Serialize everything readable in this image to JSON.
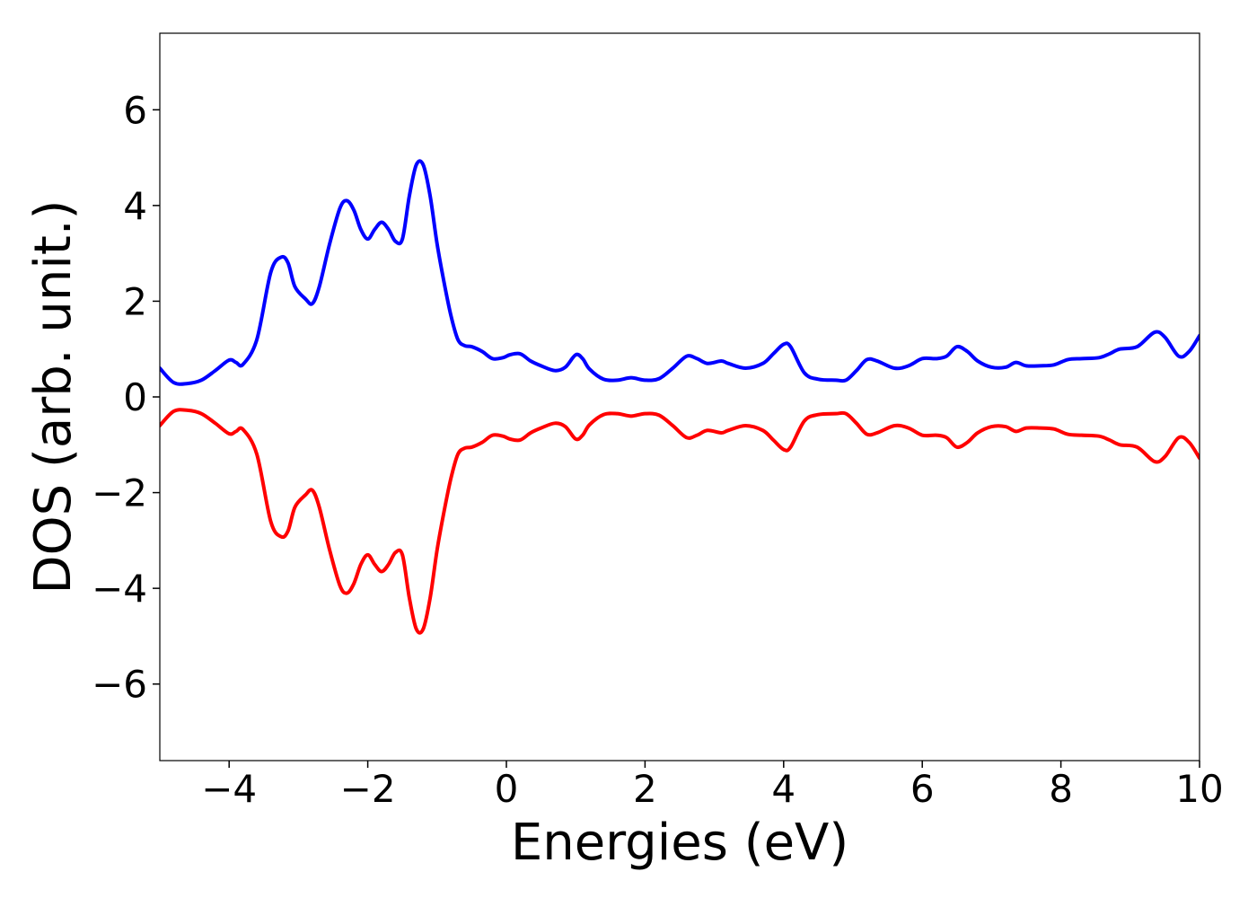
{
  "chart_data": {
    "type": "line",
    "title": "",
    "xlabel": "Energies (eV)",
    "ylabel": "DOS (arb. unit.)",
    "xlim": [
      -5,
      10
    ],
    "ylim": [
      -7.6,
      7.6
    ],
    "xticks": [
      -4,
      -2,
      0,
      2,
      4,
      6,
      8,
      10
    ],
    "xtick_labels": [
      "−4",
      "−2",
      "0",
      "2",
      "4",
      "6",
      "8",
      "10"
    ],
    "yticks": [
      -6,
      -4,
      -2,
      0,
      2,
      4,
      6
    ],
    "ytick_labels": [
      "−6",
      "−4",
      "−2",
      "0",
      "2",
      "4",
      "6"
    ],
    "grid": false,
    "legend": "none",
    "series": [
      {
        "color": "#0000ff",
        "x": [
          -5.0,
          -4.8,
          -4.6,
          -4.4,
          -4.2,
          -4.0,
          -3.9,
          -3.8,
          -3.6,
          -3.4,
          -3.25,
          -3.15,
          -3.05,
          -2.9,
          -2.8,
          -2.7,
          -2.55,
          -2.4,
          -2.3,
          -2.2,
          -2.1,
          -2.0,
          -1.9,
          -1.8,
          -1.7,
          -1.6,
          -1.5,
          -1.4,
          -1.3,
          -1.2,
          -1.1,
          -1.0,
          -0.9,
          -0.8,
          -0.7,
          -0.6,
          -0.5,
          -0.35,
          -0.2,
          -0.05,
          0.05,
          0.2,
          0.35,
          0.5,
          0.7,
          0.85,
          1.0,
          1.1,
          1.2,
          1.4,
          1.6,
          1.8,
          2.0,
          2.2,
          2.4,
          2.6,
          2.75,
          2.9,
          3.1,
          3.2,
          3.45,
          3.7,
          3.85,
          4.0,
          4.1,
          4.3,
          4.5,
          4.75,
          4.9,
          5.05,
          5.2,
          5.35,
          5.6,
          5.8,
          6.0,
          6.2,
          6.35,
          6.5,
          6.65,
          6.8,
          7.0,
          7.2,
          7.35,
          7.5,
          7.7,
          7.9,
          8.1,
          8.3,
          8.55,
          8.7,
          8.85,
          9.1,
          9.35,
          9.5,
          9.7,
          9.85,
          10.0
        ],
        "y": [
          0.6,
          0.3,
          0.28,
          0.35,
          0.55,
          0.77,
          0.72,
          0.68,
          1.2,
          2.6,
          2.92,
          2.8,
          2.3,
          2.05,
          1.95,
          2.3,
          3.2,
          3.95,
          4.1,
          3.9,
          3.5,
          3.3,
          3.5,
          3.65,
          3.5,
          3.25,
          3.3,
          4.2,
          4.85,
          4.85,
          4.2,
          3.2,
          2.4,
          1.7,
          1.2,
          1.07,
          1.05,
          0.95,
          0.8,
          0.82,
          0.88,
          0.9,
          0.75,
          0.65,
          0.55,
          0.62,
          0.88,
          0.8,
          0.58,
          0.37,
          0.35,
          0.4,
          0.35,
          0.38,
          0.6,
          0.85,
          0.8,
          0.7,
          0.75,
          0.7,
          0.6,
          0.7,
          0.9,
          1.1,
          1.05,
          0.5,
          0.37,
          0.35,
          0.35,
          0.55,
          0.78,
          0.75,
          0.6,
          0.65,
          0.8,
          0.8,
          0.85,
          1.05,
          0.95,
          0.75,
          0.62,
          0.62,
          0.72,
          0.65,
          0.65,
          0.67,
          0.78,
          0.8,
          0.82,
          0.9,
          1.0,
          1.05,
          1.35,
          1.25,
          0.85,
          0.95,
          1.28
        ]
      },
      {
        "color": "#ff0000",
        "x": [
          -5.0,
          -4.8,
          -4.6,
          -4.4,
          -4.2,
          -4.0,
          -3.9,
          -3.8,
          -3.6,
          -3.4,
          -3.25,
          -3.15,
          -3.05,
          -2.9,
          -2.8,
          -2.7,
          -2.55,
          -2.4,
          -2.3,
          -2.2,
          -2.1,
          -2.0,
          -1.9,
          -1.8,
          -1.7,
          -1.6,
          -1.5,
          -1.4,
          -1.3,
          -1.2,
          -1.1,
          -1.0,
          -0.9,
          -0.8,
          -0.7,
          -0.6,
          -0.5,
          -0.35,
          -0.2,
          -0.05,
          0.05,
          0.2,
          0.35,
          0.5,
          0.7,
          0.85,
          1.0,
          1.1,
          1.2,
          1.4,
          1.6,
          1.8,
          2.0,
          2.2,
          2.4,
          2.6,
          2.75,
          2.9,
          3.1,
          3.2,
          3.45,
          3.7,
          3.85,
          4.0,
          4.1,
          4.3,
          4.5,
          4.75,
          4.9,
          5.05,
          5.2,
          5.35,
          5.6,
          5.8,
          6.0,
          6.2,
          6.35,
          6.5,
          6.65,
          6.8,
          7.0,
          7.2,
          7.35,
          7.5,
          7.7,
          7.9,
          8.1,
          8.3,
          8.55,
          8.7,
          8.85,
          9.1,
          9.35,
          9.5,
          9.7,
          9.85,
          10.0
        ],
        "y": [
          -0.6,
          -0.3,
          -0.28,
          -0.35,
          -0.55,
          -0.77,
          -0.72,
          -0.68,
          -1.2,
          -2.6,
          -2.92,
          -2.8,
          -2.3,
          -2.05,
          -1.95,
          -2.3,
          -3.2,
          -3.95,
          -4.1,
          -3.9,
          -3.5,
          -3.3,
          -3.5,
          -3.65,
          -3.5,
          -3.25,
          -3.3,
          -4.2,
          -4.85,
          -4.85,
          -4.2,
          -3.2,
          -2.4,
          -1.7,
          -1.2,
          -1.07,
          -1.05,
          -0.95,
          -0.8,
          -0.82,
          -0.88,
          -0.9,
          -0.75,
          -0.65,
          -0.55,
          -0.62,
          -0.88,
          -0.8,
          -0.58,
          -0.37,
          -0.35,
          -0.4,
          -0.35,
          -0.38,
          -0.6,
          -0.85,
          -0.8,
          -0.7,
          -0.75,
          -0.7,
          -0.6,
          -0.7,
          -0.9,
          -1.1,
          -1.05,
          -0.5,
          -0.37,
          -0.35,
          -0.35,
          -0.55,
          -0.78,
          -0.75,
          -0.6,
          -0.65,
          -0.8,
          -0.8,
          -0.85,
          -1.05,
          -0.95,
          -0.75,
          -0.62,
          -0.62,
          -0.72,
          -0.65,
          -0.65,
          -0.67,
          -0.78,
          -0.8,
          -0.82,
          -0.9,
          -1.0,
          -1.05,
          -1.35,
          -1.25,
          -0.85,
          -0.95,
          -1.28
        ]
      }
    ]
  }
}
